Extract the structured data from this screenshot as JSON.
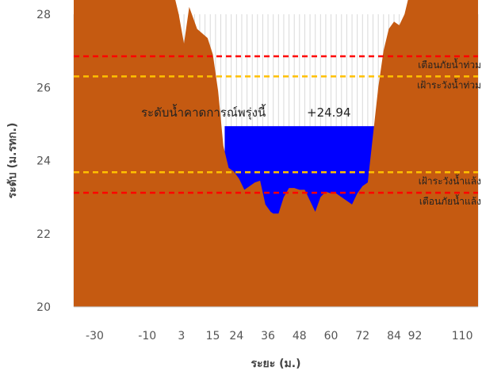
{
  "chart_data": {
    "type": "area",
    "title": "",
    "xlabel": "ระยะ (ม.)",
    "ylabel": "ระดับ (ม.รทก.)",
    "xlim": [
      -38,
      116
    ],
    "ylim": [
      20,
      28
    ],
    "x_ticks": [
      -30,
      -10,
      3,
      15,
      24,
      36,
      48,
      60,
      72,
      84,
      92,
      110
    ],
    "x_tick_labels": [
      "-30",
      "-10",
      "3",
      "15",
      "24",
      "36",
      "48",
      "60",
      "72",
      "84",
      "92",
      "110"
    ],
    "y_ticks": [
      20,
      22,
      24,
      26,
      28
    ],
    "grid": "vertical",
    "cross_section": {
      "name": "",
      "color": "#c55a11",
      "x": [
        -38,
        -36,
        0,
        2,
        4,
        6,
        9,
        13,
        15,
        17,
        19,
        21,
        23,
        25,
        27,
        29,
        31,
        33,
        35,
        37,
        38,
        40,
        42,
        44,
        46,
        48,
        50,
        52,
        54,
        56,
        58,
        60,
        62,
        64,
        66,
        68,
        70,
        72,
        74,
        76,
        78,
        80,
        82,
        84,
        86,
        88,
        90,
        116
      ],
      "y": [
        28.6,
        28.6,
        28.6,
        28.0,
        27.2,
        28.2,
        27.6,
        27.35,
        26.9,
        25.9,
        24.4,
        23.8,
        23.7,
        23.5,
        23.2,
        23.3,
        23.4,
        23.45,
        22.8,
        22.6,
        22.55,
        22.55,
        23.0,
        23.25,
        23.25,
        23.2,
        23.2,
        22.9,
        22.6,
        23.0,
        23.15,
        23.1,
        23.1,
        23.0,
        22.9,
        22.8,
        23.1,
        23.3,
        23.4,
        24.7,
        26.0,
        27.0,
        27.6,
        27.8,
        27.7,
        28.0,
        28.6,
        28.6
      ]
    },
    "water": {
      "name": "",
      "level": 24.94,
      "x_start": 19.5,
      "x_end": 76.5,
      "color": "#0000ff"
    },
    "reference_lines": [
      {
        "label": "เตือนภัยน้ำท่วม",
        "value": 26.85,
        "color": "#ff0000"
      },
      {
        "label": "เฝ้าระวังน้ำท่วม",
        "value": 26.3,
        "color": "#ffc000"
      },
      {
        "label": "เฝ้าระวังน้ำแล้ง",
        "value": 23.68,
        "color": "#ffc000"
      },
      {
        "label": "เตือนภัยน้ำแล้ง",
        "value": 23.12,
        "color": "#ff0000"
      }
    ],
    "forecast_label": "ระดับน้ำคาดการณ์พรุ่งนี้",
    "forecast_value": "+24.94"
  }
}
